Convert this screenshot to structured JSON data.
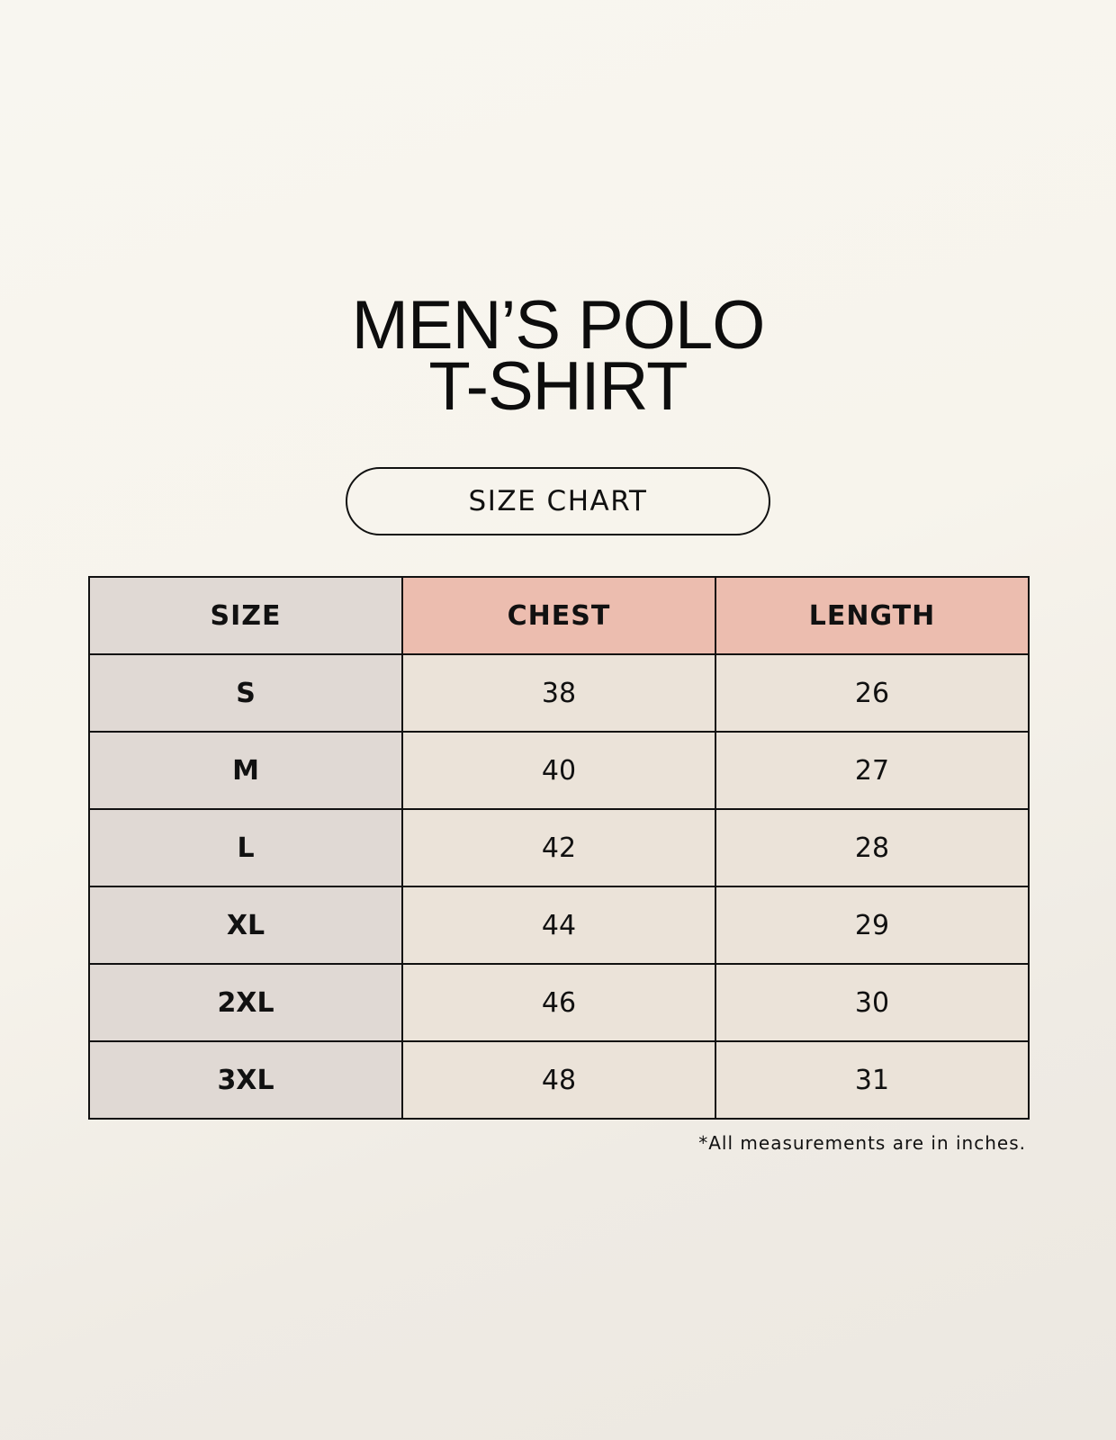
{
  "title": {
    "line1": "MEN’S POLO",
    "line2": "T-SHIRT"
  },
  "badge": "SIZE CHART",
  "table": {
    "headers": [
      "SIZE",
      "CHEST",
      "LENGTH"
    ],
    "rows": [
      [
        "S",
        "38",
        "26"
      ],
      [
        "M",
        "40",
        "27"
      ],
      [
        "L",
        "42",
        "28"
      ],
      [
        "XL",
        "44",
        "29"
      ],
      [
        "2XL",
        "46",
        "30"
      ],
      [
        "3XL",
        "48",
        "31"
      ]
    ]
  },
  "note": "*All measurements are in inches.",
  "colors": {
    "size_column": "#e0d9d4",
    "measure_header": "#ecbdaf",
    "value_cell": "#ebe3d9"
  }
}
